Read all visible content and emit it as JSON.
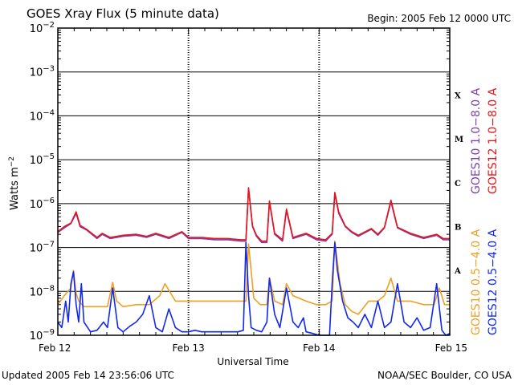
{
  "chart_data": {
    "type": "line",
    "title": "GOES Xray Flux (5 minute data)",
    "begin_label": "Begin:  2005 Feb 12 0000 UTC",
    "ylabel_main": "Watts m",
    "ylabel_exp": "−2",
    "xlabel": "Universal Time",
    "yscale": "log",
    "ylim": [
      1e-09,
      0.01
    ],
    "y_ticks": [
      {
        "value": 0.01,
        "base": "10",
        "exp": "−2"
      },
      {
        "value": 0.001,
        "base": "10",
        "exp": "−3"
      },
      {
        "value": 0.0001,
        "base": "10",
        "exp": "−4"
      },
      {
        "value": 1e-05,
        "base": "10",
        "exp": "−5"
      },
      {
        "value": 1e-06,
        "base": "10",
        "exp": "−6"
      },
      {
        "value": 1e-07,
        "base": "10",
        "exp": "−7"
      },
      {
        "value": 1e-08,
        "base": "10",
        "exp": "−8"
      },
      {
        "value": 1e-09,
        "base": "10",
        "exp": "−9"
      }
    ],
    "x_ticks": [
      {
        "day": 0,
        "label": "Feb 12"
      },
      {
        "day": 1,
        "label": "Feb 13"
      },
      {
        "day": 2,
        "label": "Feb 14"
      },
      {
        "day": 3,
        "label": "Feb 15"
      }
    ],
    "flare_classes": [
      {
        "label": "X",
        "value": 0.0003
      },
      {
        "label": "M",
        "value": 3e-05
      },
      {
        "label": "C",
        "value": 3e-06
      },
      {
        "label": "B",
        "value": 3e-07
      },
      {
        "label": "A",
        "value": 3e-08
      }
    ],
    "legend_right": [
      {
        "name": "GOES10 1.0−8.0 A",
        "color": "#7a3fb0"
      },
      {
        "name": "GOES12 1.0−8.0 A",
        "color": "#e8141a"
      }
    ],
    "legend_lower": [
      {
        "name": "GOES10 0.5−4.0 A",
        "color": "#f0a020"
      },
      {
        "name": "GOES12 0.5−4.0 A",
        "color": "#1028f0"
      }
    ],
    "series": [
      {
        "name": "GOES10 1.0−8.0 A",
        "color": "#7a3fb0",
        "x": [
          0,
          0.05,
          0.1,
          0.14,
          0.17,
          0.22,
          0.3,
          0.34,
          0.4,
          0.5,
          0.6,
          0.68,
          0.75,
          0.85,
          0.95,
          1.0,
          1.1,
          1.2,
          1.3,
          1.4,
          1.44,
          1.46,
          1.49,
          1.52,
          1.56,
          1.6,
          1.62,
          1.66,
          1.72,
          1.75,
          1.8,
          1.9,
          1.98,
          2.05,
          2.1,
          2.12,
          2.15,
          2.2,
          2.25,
          2.3,
          2.4,
          2.45,
          2.5,
          2.55,
          2.6,
          2.7,
          2.8,
          2.9,
          2.95,
          3.0
        ],
        "y": [
          2.2e-07,
          2.8e-07,
          3.5e-07,
          6e-07,
          3e-07,
          2.5e-07,
          1.6e-07,
          2e-07,
          1.6e-07,
          1.8e-07,
          1.9e-07,
          1.7e-07,
          2e-07,
          1.6e-07,
          2.2e-07,
          1.6e-07,
          1.6e-07,
          1.5e-07,
          1.5e-07,
          1.4e-07,
          1.4e-07,
          2.2e-06,
          3e-07,
          1.8e-07,
          1.3e-07,
          1.3e-07,
          1.1e-06,
          2e-07,
          1.4e-07,
          7e-07,
          1.6e-07,
          2e-07,
          1.5e-07,
          1.4e-07,
          2e-07,
          1.7e-06,
          6e-07,
          3e-07,
          2.2e-07,
          1.8e-07,
          2.6e-07,
          1.9e-07,
          2.8e-07,
          1.1e-06,
          2.8e-07,
          2e-07,
          1.6e-07,
          1.9e-07,
          1.5e-07,
          1.5e-07
        ]
      },
      {
        "name": "GOES12 1.0−8.0 A",
        "color": "#e8141a",
        "x": [
          0,
          0.05,
          0.1,
          0.14,
          0.17,
          0.22,
          0.3,
          0.34,
          0.4,
          0.5,
          0.6,
          0.68,
          0.75,
          0.85,
          0.95,
          1.0,
          1.1,
          1.2,
          1.3,
          1.4,
          1.44,
          1.46,
          1.49,
          1.52,
          1.56,
          1.6,
          1.62,
          1.66,
          1.72,
          1.75,
          1.8,
          1.9,
          1.98,
          2.05,
          2.1,
          2.12,
          2.15,
          2.2,
          2.25,
          2.3,
          2.4,
          2.45,
          2.5,
          2.55,
          2.6,
          2.7,
          2.8,
          2.9,
          2.95,
          3.0
        ],
        "y": [
          2.3e-07,
          3e-07,
          3.6e-07,
          6.5e-07,
          3.2e-07,
          2.6e-07,
          1.7e-07,
          2.1e-07,
          1.7e-07,
          1.9e-07,
          2e-07,
          1.8e-07,
          2.1e-07,
          1.7e-07,
          2.3e-07,
          1.7e-07,
          1.7e-07,
          1.6e-07,
          1.6e-07,
          1.5e-07,
          1.5e-07,
          2.3e-06,
          3.1e-07,
          1.9e-07,
          1.4e-07,
          1.4e-07,
          1.15e-06,
          2.1e-07,
          1.5e-07,
          7.5e-07,
          1.7e-07,
          2.1e-07,
          1.6e-07,
          1.5e-07,
          2.1e-07,
          1.8e-06,
          6.5e-07,
          3.1e-07,
          2.3e-07,
          1.9e-07,
          2.7e-07,
          2e-07,
          2.9e-07,
          1.2e-06,
          2.9e-07,
          2.1e-07,
          1.7e-07,
          2e-07,
          1.6e-07,
          1.6e-07
        ]
      },
      {
        "name": "GOES10 0.5−4.0 A",
        "color": "#f0a020",
        "x": [
          0,
          0.05,
          0.1,
          0.12,
          0.14,
          0.16,
          0.2,
          0.3,
          0.38,
          0.42,
          0.45,
          0.5,
          0.6,
          0.7,
          0.78,
          0.82,
          0.9,
          1.0,
          1.1,
          1.2,
          1.3,
          1.38,
          1.44,
          1.46,
          1.5,
          1.55,
          1.6,
          1.62,
          1.66,
          1.72,
          1.75,
          1.8,
          1.9,
          1.98,
          2.05,
          2.1,
          2.12,
          2.16,
          2.2,
          2.25,
          2.3,
          2.38,
          2.45,
          2.5,
          2.55,
          2.6,
          2.7,
          2.8,
          2.88,
          2.92,
          2.96,
          3.0
        ],
        "y": [
          5e-09,
          8e-09,
          1.2e-08,
          3e-08,
          9e-09,
          6e-09,
          4.5e-09,
          4.5e-09,
          4.5e-09,
          1.6e-08,
          6e-09,
          4.5e-09,
          5e-09,
          5e-09,
          8e-09,
          1.5e-08,
          6e-09,
          6e-09,
          6e-09,
          6e-09,
          6e-09,
          6e-09,
          6e-09,
          1.2e-07,
          7e-09,
          5e-09,
          5e-09,
          2e-08,
          6e-09,
          5e-09,
          1.5e-08,
          8e-09,
          6e-09,
          5e-09,
          5e-09,
          6e-09,
          1.4e-07,
          1.5e-08,
          5e-09,
          3.5e-09,
          3e-09,
          6e-09,
          6e-09,
          8e-09,
          2e-08,
          6e-09,
          6e-09,
          5e-09,
          5e-09,
          1.2e-08,
          5e-09,
          5e-09
        ]
      },
      {
        "name": "GOES12 0.5−4.0 A",
        "color": "#1028f0",
        "x": [
          0,
          0.03,
          0.06,
          0.08,
          0.1,
          0.12,
          0.14,
          0.16,
          0.18,
          0.2,
          0.25,
          0.3,
          0.35,
          0.38,
          0.42,
          0.46,
          0.5,
          0.55,
          0.6,
          0.65,
          0.7,
          0.75,
          0.8,
          0.85,
          0.9,
          0.95,
          1.0,
          1.05,
          1.1,
          1.2,
          1.3,
          1.38,
          1.42,
          1.44,
          1.46,
          1.48,
          1.52,
          1.56,
          1.6,
          1.62,
          1.66,
          1.7,
          1.75,
          1.8,
          1.84,
          1.88,
          1.9,
          1.95,
          2.0,
          2.05,
          2.08,
          2.1,
          2.12,
          2.14,
          2.18,
          2.22,
          2.26,
          2.3,
          2.35,
          2.4,
          2.45,
          2.5,
          2.55,
          2.6,
          2.65,
          2.7,
          2.75,
          2.8,
          2.85,
          2.9,
          2.94,
          2.97,
          3.0
        ],
        "y": [
          2e-09,
          1.5e-09,
          6e-09,
          2e-09,
          1.5e-08,
          2.8e-08,
          5e-09,
          2e-09,
          1.5e-08,
          2e-09,
          1.2e-09,
          1.3e-09,
          2e-09,
          1.5e-09,
          1.2e-08,
          1.5e-09,
          1.2e-09,
          1.6e-09,
          2e-09,
          3e-09,
          8e-09,
          1.5e-09,
          1.2e-09,
          4e-09,
          1.5e-09,
          1.2e-09,
          1.2e-09,
          1.3e-09,
          1.2e-09,
          1.2e-09,
          1.2e-09,
          1.2e-09,
          1.3e-09,
          1.3e-07,
          8e-09,
          1.5e-09,
          1.3e-09,
          1.2e-09,
          2e-09,
          2e-08,
          3e-09,
          1.5e-09,
          1.2e-08,
          2e-09,
          1.5e-09,
          2.5e-09,
          1.2e-09,
          1.1e-09,
          1e-09,
          1e-09,
          1e-09,
          1.5e-08,
          1.3e-07,
          3e-08,
          6e-09,
          2.5e-09,
          2e-09,
          1.5e-09,
          3e-09,
          1.5e-09,
          6e-09,
          1.5e-09,
          2e-09,
          1.5e-08,
          2e-09,
          1.5e-09,
          2.5e-09,
          1.3e-09,
          1.5e-09,
          1.5e-08,
          1.3e-09,
          1e-09,
          1.1e-09
        ]
      }
    ],
    "footer_left": "Updated 2005 Feb 14 23:56:06 UTC",
    "footer_right": "NOAA/SEC Boulder, CO USA"
  }
}
